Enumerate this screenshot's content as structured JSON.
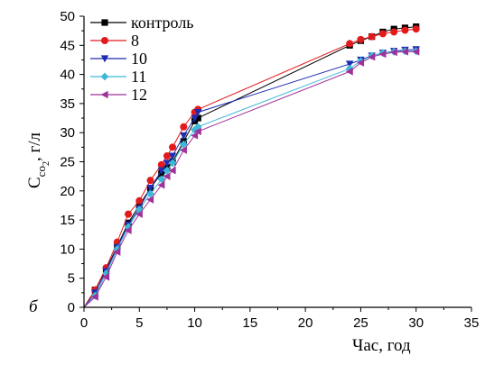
{
  "chart_data": {
    "type": "line",
    "panel_label": "б",
    "xlabel": "Час, год",
    "ylabel": {
      "main": "C",
      "sub": "co",
      "sub2": "2",
      "rest": ", г/л"
    },
    "xlim": [
      0,
      35
    ],
    "ylim": [
      0,
      50
    ],
    "xticks": [
      0,
      5,
      10,
      15,
      20,
      25,
      30,
      35
    ],
    "yticks": [
      0,
      5,
      10,
      15,
      20,
      25,
      30,
      35,
      40,
      45,
      50
    ],
    "grid": false,
    "legend_position": "top-left",
    "series": [
      {
        "name": "контроль",
        "color": "#000000",
        "marker": "square",
        "x": [
          0,
          1,
          2,
          3,
          4,
          5,
          6,
          7,
          7.5,
          8,
          9,
          10,
          10.3,
          24,
          25,
          26,
          27,
          28,
          29,
          30
        ],
        "y": [
          0,
          3.0,
          6.5,
          10.5,
          14.5,
          17.5,
          20.5,
          23.0,
          24.0,
          25.0,
          28.5,
          32.0,
          32.5,
          45.0,
          45.8,
          46.5,
          47.3,
          47.8,
          48.0,
          48.2
        ]
      },
      {
        "name": "8",
        "color": "#e31a1c",
        "marker": "circle",
        "x": [
          0,
          1,
          2,
          3,
          4,
          5,
          6,
          7,
          7.5,
          8,
          9,
          10,
          10.3,
          24,
          25,
          26,
          27,
          28,
          29,
          30
        ],
        "y": [
          0,
          3.0,
          6.8,
          11.2,
          16.0,
          18.3,
          21.8,
          24.5,
          26.0,
          27.5,
          31.0,
          33.5,
          34.0,
          45.3,
          46.0,
          46.5,
          47.0,
          47.3,
          47.6,
          47.8
        ]
      },
      {
        "name": "10",
        "color": "#1f2bb0",
        "marker": "triangle-down",
        "x": [
          0,
          1,
          2,
          3,
          4,
          5,
          6,
          7,
          7.5,
          8,
          9,
          10,
          10.3,
          24,
          25,
          26,
          27,
          28,
          29,
          30
        ],
        "y": [
          0,
          2.5,
          6.2,
          10.3,
          14.2,
          17.0,
          20.5,
          23.5,
          24.8,
          26.0,
          29.5,
          32.5,
          33.5,
          41.8,
          42.5,
          43.2,
          43.7,
          44.0,
          44.2,
          44.3
        ]
      },
      {
        "name": "11",
        "color": "#3fb8d8",
        "marker": "diamond",
        "x": [
          0,
          1,
          2,
          3,
          4,
          5,
          6,
          7,
          7.5,
          8,
          9,
          10,
          10.3,
          24,
          25,
          26,
          27,
          28,
          29,
          30
        ],
        "y": [
          0,
          2.0,
          5.8,
          10.0,
          13.8,
          16.8,
          19.5,
          22.0,
          23.5,
          24.8,
          28.0,
          30.5,
          31.0,
          41.0,
          42.3,
          43.2,
          43.7,
          43.9,
          44.0,
          44.0
        ]
      },
      {
        "name": "12",
        "color": "#a0309a",
        "marker": "triangle-left",
        "x": [
          0,
          1,
          2,
          3,
          4,
          5,
          6,
          7,
          7.5,
          8,
          9,
          10,
          10.3,
          24,
          25,
          26,
          27,
          28,
          29,
          30
        ],
        "y": [
          0,
          1.8,
          5.2,
          9.5,
          13.2,
          16.0,
          18.5,
          21.0,
          22.5,
          23.5,
          27.0,
          29.5,
          30.2,
          40.5,
          42.0,
          43.0,
          43.5,
          43.8,
          43.9,
          43.9
        ]
      }
    ]
  }
}
